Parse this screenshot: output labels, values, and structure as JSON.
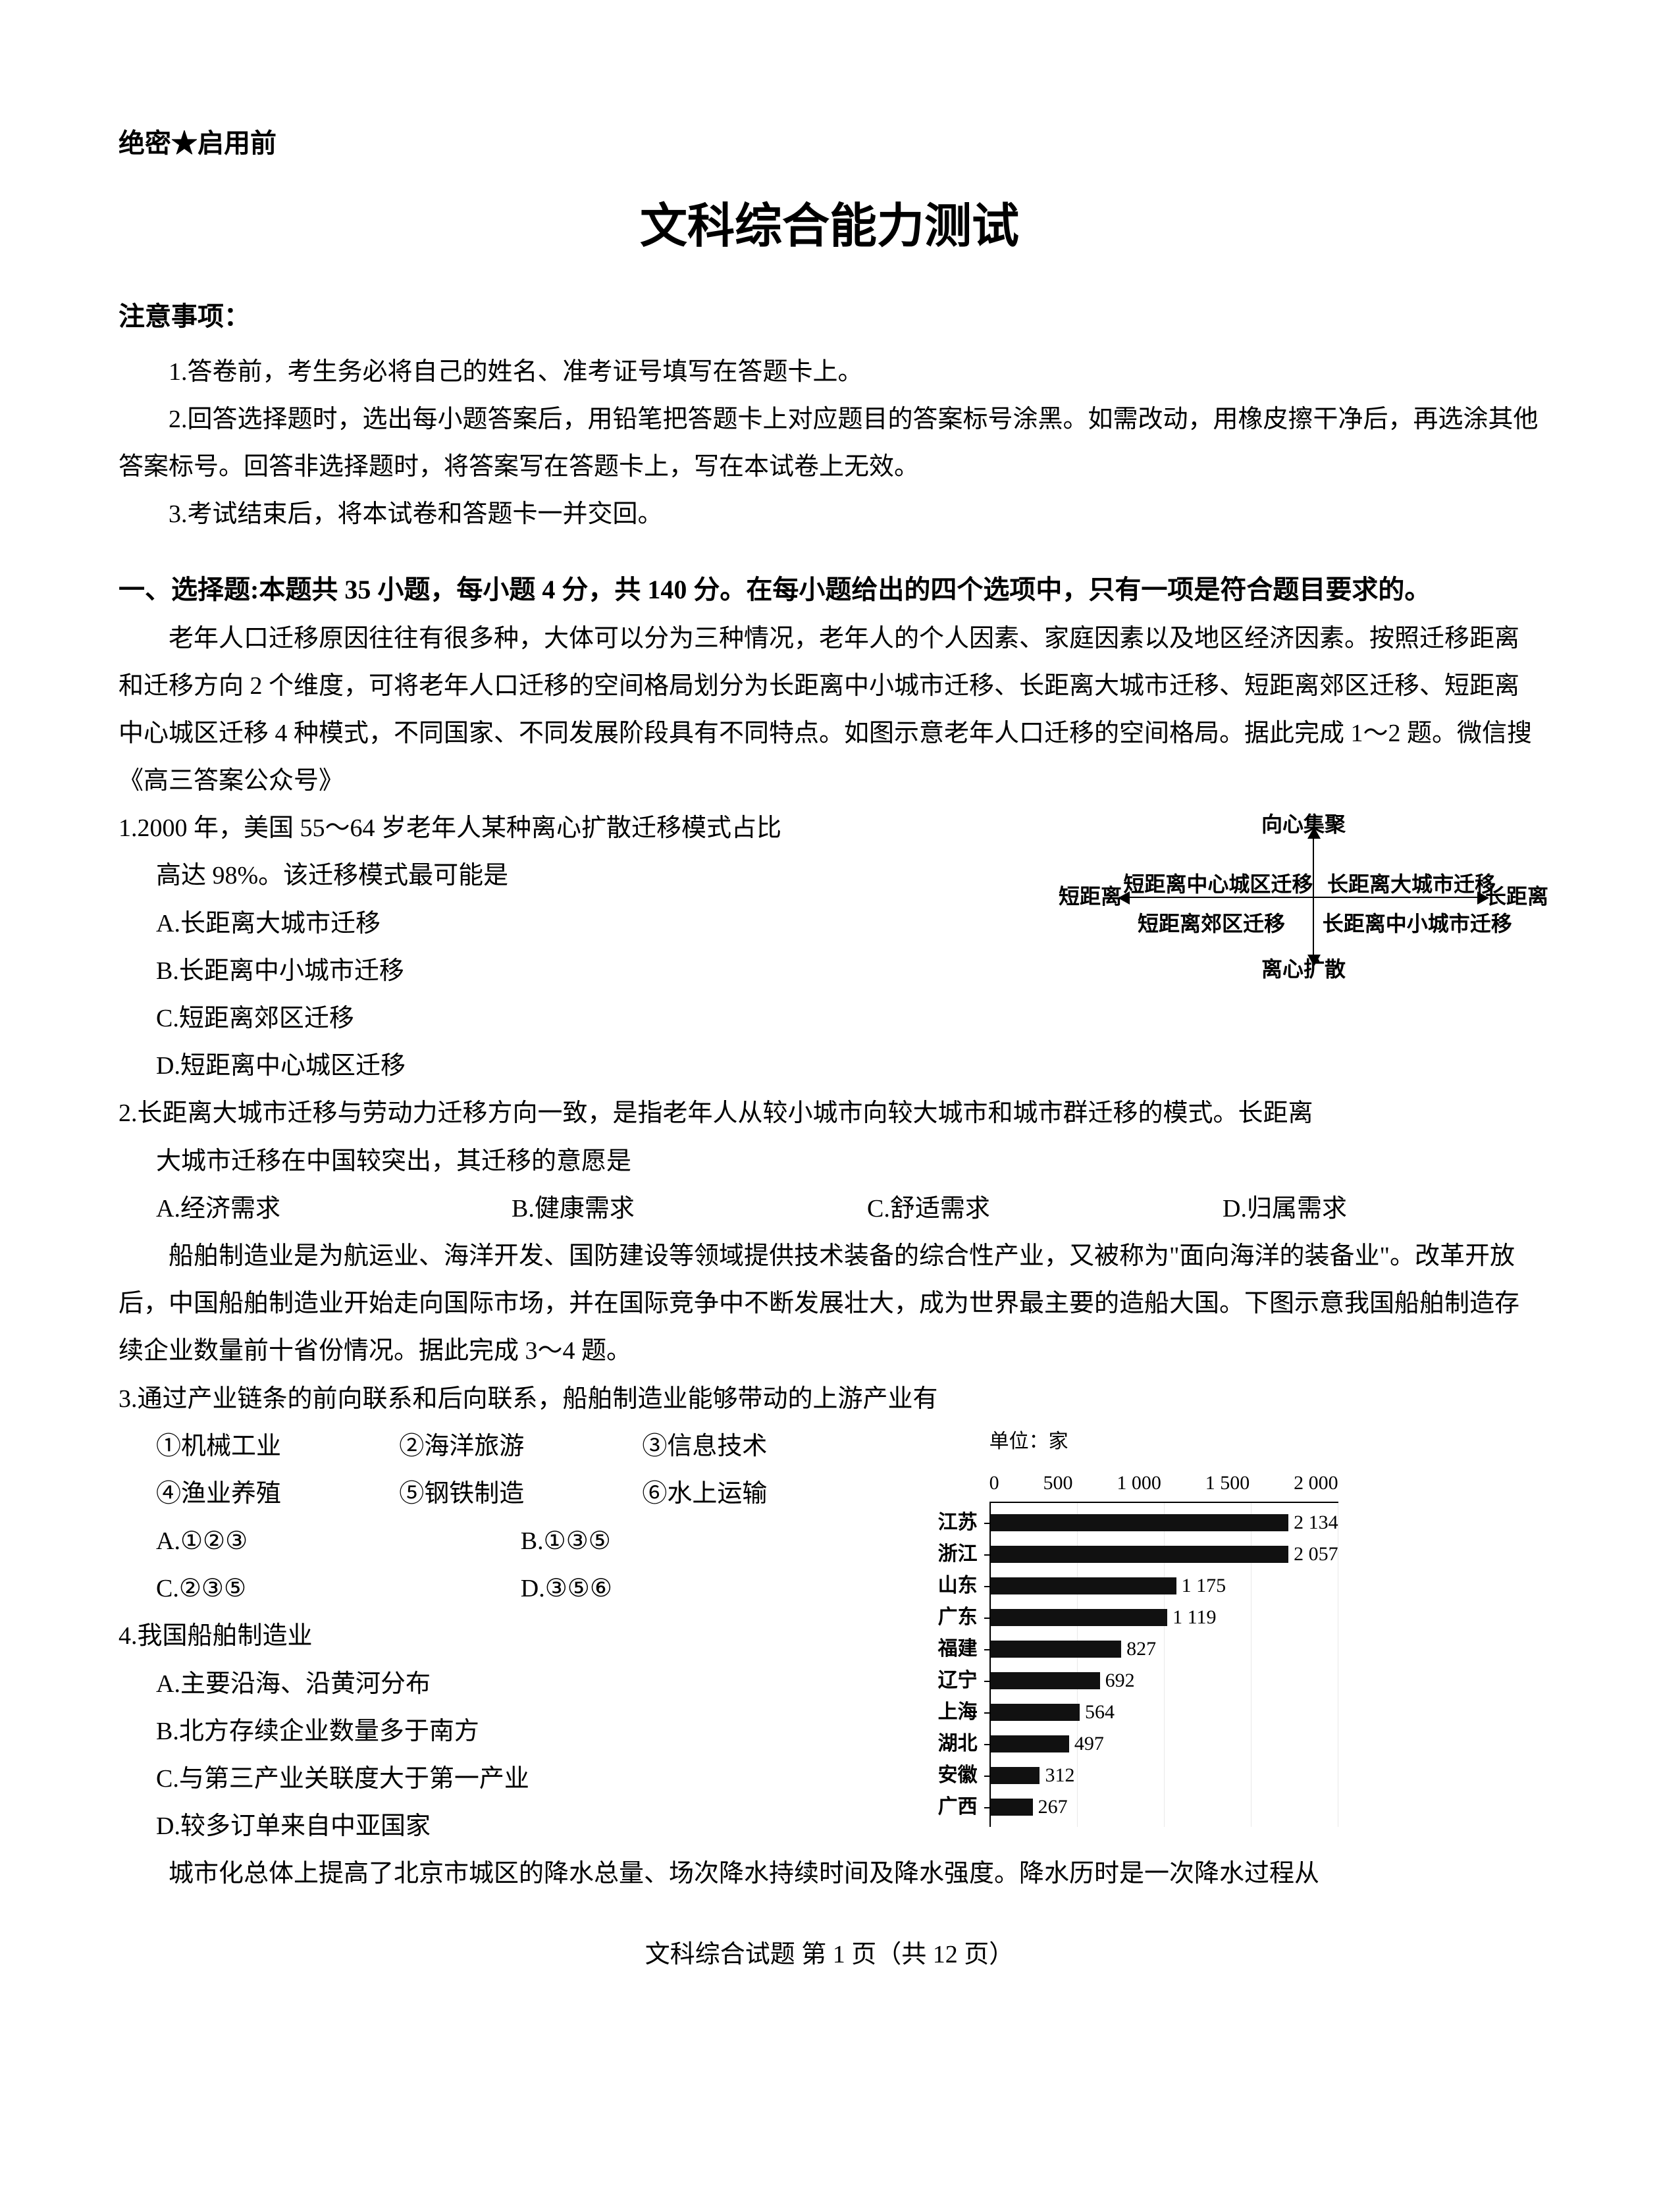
{
  "confidential": "绝密★启用前",
  "title": "文科综合能力测试",
  "notice_title": "注意事项：",
  "notices": [
    "1.答卷前，考生务必将自己的姓名、准考证号填写在答题卡上。",
    "2.回答选择题时，选出每小题答案后，用铅笔把答题卡上对应题目的答案标号涂黑。如需改动，用橡皮擦干净后，再选涂其他答案标号。回答非选择题时，将答案写在答题卡上，写在本试卷上无效。",
    "3.考试结束后，将本试卷和答题卡一并交回。"
  ],
  "section_title": "一、选择题:本题共 35 小题，每小题 4 分，共 140 分。在每小题给出的四个选项中，只有一项是符合题目要求的。",
  "passage1": "老年人口迁移原因往往有很多种，大体可以分为三种情况，老年人的个人因素、家庭因素以及地区经济因素。按照迁移距离和迁移方向 2 个维度，可将老年人口迁移的空间格局划分为长距离中小城市迁移、长距离大城市迁移、短距离郊区迁移、短距离中心城区迁移 4 种模式，不同国家、不同发展阶段具有不同特点。如图示意老年人口迁移的空间格局。据此完成 1～2 题。微信搜《高三答案公众号》",
  "q1": {
    "stem": "1.2000 年，美国 55～64 岁老年人某种离心扩散迁移模式占比",
    "sub": "高达 98%。该迁移模式最可能是",
    "A": "A.长距离大城市迁移",
    "B": "B.长距离中小城市迁移",
    "C": "C.短距离郊区迁移",
    "D": "D.短距离中心城区迁移"
  },
  "quadrant": {
    "top": "向心集聚",
    "bottom": "离心扩散",
    "left": "短距离",
    "right": "长距离",
    "q2": "短距离中心城区迁移",
    "q1": "长距离大城市迁移",
    "q3": "短距离郊区迁移",
    "q4": "长距离中小城市迁移",
    "fontsize": 32,
    "color": "#000000"
  },
  "q2": {
    "stem": "2.长距离大城市迁移与劳动力迁移方向一致，是指老年人从较小城市向较大城市和城市群迁移的模式。长距离",
    "sub": "大城市迁移在中国较突出，其迁移的意愿是",
    "A": "A.经济需求",
    "B": "B.健康需求",
    "C": "C.舒适需求",
    "D": "D.归属需求"
  },
  "passage2": "船舶制造业是为航运业、海洋开发、国防建设等领域提供技术装备的综合性产业，又被称为\"面向海洋的装备业\"。改革开放后，中国船舶制造业开始走向国际市场，并在国际竞争中不断发展壮大，成为世界最主要的造船大国。下图示意我国船舶制造存续企业数量前十省份情况。据此完成 3～4 题。",
  "q3": {
    "stem": "3.通过产业链条的前向联系和后向联系，船舶制造业能够带动的上游产业有",
    "o1": "①机械工业",
    "o2": "②海洋旅游",
    "o3": "③信息技术",
    "o4": "④渔业养殖",
    "o5": "⑤钢铁制造",
    "o6": "⑥水上运输",
    "A": "A.①②③",
    "B": "B.①③⑤",
    "C": "C.②③⑤",
    "D": "D.③⑤⑥"
  },
  "q4": {
    "stem": "4.我国船舶制造业",
    "A": "A.主要沿海、沿黄河分布",
    "B": "B.北方存续企业数量多于南方",
    "C": "C.与第三产业关联度大于第一产业",
    "D": "D.较多订单来自中亚国家"
  },
  "barchart": {
    "unit": "单位：家",
    "max": 2200,
    "ticks": [
      "0",
      "500",
      "1 000",
      "1 500",
      "2 000"
    ],
    "bar_color": "#111111",
    "grid_color": "#e8e8e8",
    "rows": [
      {
        "label": "江苏",
        "value": 2134,
        "display": "2 134"
      },
      {
        "label": "浙江",
        "value": 2057,
        "display": "2 057"
      },
      {
        "label": "山东",
        "value": 1175,
        "display": "1 175"
      },
      {
        "label": "广东",
        "value": 1119,
        "display": "1 119"
      },
      {
        "label": "福建",
        "value": 827,
        "display": "827"
      },
      {
        "label": "辽宁",
        "value": 692,
        "display": "692"
      },
      {
        "label": "上海",
        "value": 564,
        "display": "564"
      },
      {
        "label": "湖北",
        "value": 497,
        "display": "497"
      },
      {
        "label": "安徽",
        "value": 312,
        "display": "312"
      },
      {
        "label": "广西",
        "value": 267,
        "display": "267"
      }
    ]
  },
  "passage3": "城市化总体上提高了北京市城区的降水总量、场次降水持续时间及降水强度。降水历时是一次降水过程从",
  "footer": {
    "prefix": "文科综合试题  第 ",
    "page": "1",
    "mid": " 页（共 ",
    "total": "12",
    "suffix": " 页）"
  }
}
